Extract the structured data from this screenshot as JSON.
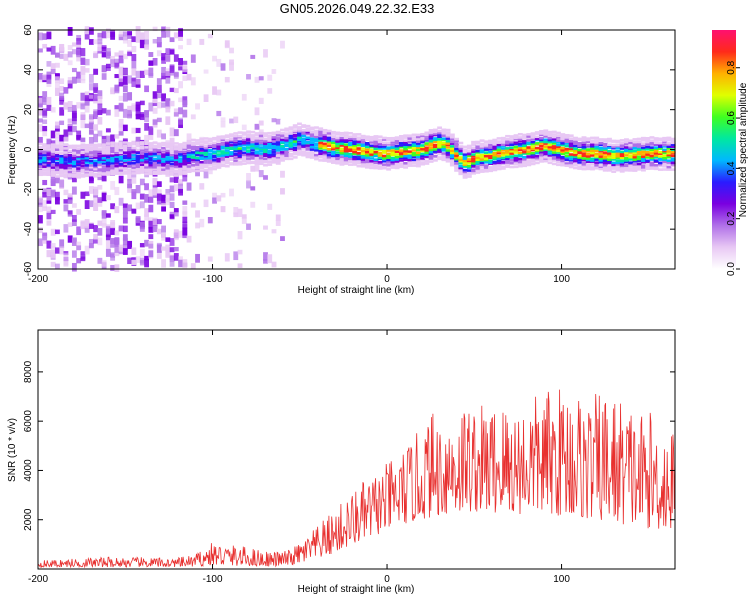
{
  "title": "GN05.2026.049.22.32.E33",
  "colors": {
    "snr_line": "#e8302f",
    "frame": "#000000",
    "cmap": [
      "#ffffff",
      "#e8c8f4",
      "#b070e8",
      "#7a00e0",
      "#2a1cff",
      "#00b8ff",
      "#00e8a0",
      "#40ff20",
      "#e0ff00",
      "#ffb000",
      "#ff2a1a",
      "#ff1070"
    ]
  },
  "chart_data": [
    {
      "type": "heatmap",
      "title": "GN05.2026.049.22.32.E33",
      "xlabel": "Height of straight line (km)",
      "ylabel": "Frequency (Hz)",
      "xlim": [
        -200,
        165
      ],
      "ylim": [
        -60,
        60
      ],
      "xticks": [
        -200,
        -100,
        0,
        100
      ],
      "yticks": [
        60,
        40,
        20,
        0,
        -20,
        -40,
        -60
      ],
      "colorbar": {
        "label": "Normalized spectral amplitude",
        "range": [
          0,
          0.95
        ],
        "ticks": [
          0.0,
          0.2,
          0.4,
          0.6,
          0.8
        ]
      },
      "ridge_x": [
        -200,
        -180,
        -160,
        -140,
        -120,
        -110,
        -100,
        -90,
        -80,
        -70,
        -60,
        -50,
        -40,
        -30,
        -20,
        -10,
        0,
        10,
        20,
        25,
        30,
        35,
        40,
        45,
        50,
        60,
        70,
        80,
        90,
        100,
        110,
        120,
        130,
        140,
        150,
        165
      ],
      "ridge_y": [
        -5,
        -6,
        -5,
        -4,
        -5,
        -3,
        -2,
        0,
        1,
        0,
        2,
        5,
        3,
        1,
        0,
        -1,
        -2,
        -1,
        0,
        2,
        3,
        2,
        -3,
        -7,
        -4,
        -3,
        -1,
        0,
        2,
        0,
        -2,
        -2,
        -3,
        -3,
        -2,
        -2
      ]
    },
    {
      "type": "line",
      "xlabel": "Height of straight line (km)",
      "ylabel": "SNR (10 * v/v)",
      "xlim": [
        -200,
        165
      ],
      "ylim": [
        0,
        9700
      ],
      "xticks": [
        -200,
        -100,
        0,
        100
      ],
      "yticks": [
        2000,
        4000,
        6000,
        8000
      ],
      "envelope_x": [
        -200,
        -160,
        -120,
        -110,
        -100,
        -80,
        -65,
        -55,
        -45,
        -35,
        -25,
        -15,
        -5,
        5,
        15,
        25,
        35,
        45,
        55,
        65,
        75,
        85,
        95,
        105,
        115,
        125,
        135,
        145,
        155,
        165
      ],
      "envelope_y": [
        350,
        500,
        450,
        600,
        1100,
        900,
        700,
        800,
        1400,
        2100,
        2800,
        3500,
        4000,
        4600,
        5300,
        6400,
        6500,
        6900,
        6700,
        6900,
        6800,
        7100,
        7400,
        7600,
        7000,
        7300,
        7000,
        6500,
        6300,
        5700
      ],
      "baseline_y": [
        80,
        80,
        80,
        100,
        150,
        120,
        100,
        150,
        300,
        500,
        800,
        1100,
        1400,
        1700,
        1900,
        2100,
        2200,
        2300,
        2300,
        2200,
        2200,
        2300,
        2200,
        2100,
        2000,
        1900,
        1800,
        1700,
        1600,
        1500
      ]
    }
  ]
}
